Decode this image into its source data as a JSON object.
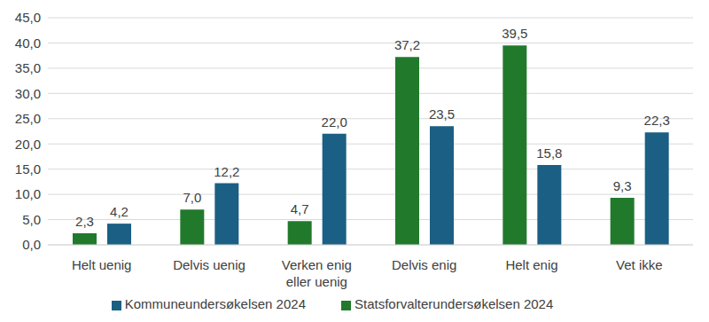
{
  "chart_data": {
    "type": "bar",
    "categories": [
      "Helt uenig",
      "Delvis uenig",
      "Verken enig eller uenig",
      "Delvis enig",
      "Helt enig",
      "Vet ikke"
    ],
    "series": [
      {
        "name": "Statsforvalterundersøkelsen 2024",
        "color": "#217a2c",
        "values": [
          2.3,
          7.0,
          4.7,
          37.2,
          39.5,
          9.3
        ],
        "value_labels": [
          "2,3",
          "7,0",
          "4,7",
          "37,2",
          "39,5",
          "9,3"
        ]
      },
      {
        "name": "Kommuneundersøkelsen 2024",
        "color": "#1b5f84",
        "values": [
          4.2,
          12.2,
          22.0,
          23.5,
          15.8,
          22.3
        ],
        "value_labels": [
          "4,2",
          "12,2",
          "22,0",
          "23,5",
          "15,8",
          "22,3"
        ]
      }
    ],
    "ylim": [
      0,
      45
    ],
    "yticks": [
      {
        "value": 0,
        "label": "0,0"
      },
      {
        "value": 5,
        "label": "5,0"
      },
      {
        "value": 10,
        "label": "10,0"
      },
      {
        "value": 15,
        "label": "15,0"
      },
      {
        "value": 20,
        "label": "20,0"
      },
      {
        "value": 25,
        "label": "25,0"
      },
      {
        "value": 30,
        "label": "30,0"
      },
      {
        "value": 35,
        "label": "35,0"
      },
      {
        "value": 40,
        "label": "40,0"
      },
      {
        "value": 45,
        "label": "45,0"
      }
    ],
    "grid": true,
    "legend": "bottom",
    "data_labels": true
  }
}
